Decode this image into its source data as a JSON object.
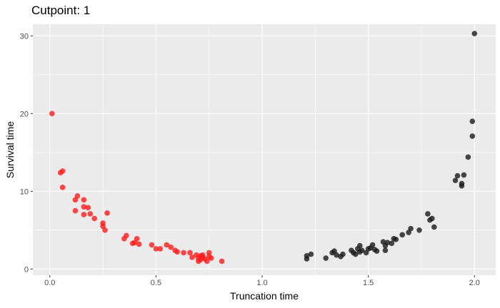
{
  "chart_data": {
    "type": "scatter",
    "title": "Cutpoint: 1",
    "xlabel": "Truncation time",
    "ylabel": "Survival time",
    "xlim": [
      -0.08,
      2.1
    ],
    "ylim": [
      -0.8,
      31.5
    ],
    "x_ticks": [
      0.0,
      0.5,
      1.0,
      1.5,
      2.0
    ],
    "x_tick_labels": [
      "0.0",
      "0.5",
      "1.0",
      "1.5",
      "2.0"
    ],
    "y_ticks": [
      0,
      10,
      20,
      30
    ],
    "y_tick_labels": [
      "0",
      "10",
      "20",
      "30"
    ],
    "grid": true,
    "legend": "none",
    "colors": {
      "panel": "#ebebeb",
      "grid": "#ffffff",
      "group_1": "#ff1a1a",
      "group_2": "#1a1a1a"
    },
    "series": [
      {
        "color": "#ff1a1a",
        "points": [
          [
            0.01,
            20.0
          ],
          [
            0.05,
            12.4
          ],
          [
            0.06,
            12.6
          ],
          [
            0.06,
            10.5
          ],
          [
            0.12,
            8.9
          ],
          [
            0.13,
            9.4
          ],
          [
            0.12,
            7.5
          ],
          [
            0.16,
            8.9
          ],
          [
            0.16,
            8.0
          ],
          [
            0.18,
            7.9
          ],
          [
            0.16,
            7.0
          ],
          [
            0.19,
            7.1
          ],
          [
            0.21,
            6.5
          ],
          [
            0.25,
            5.9
          ],
          [
            0.25,
            5.5
          ],
          [
            0.26,
            5.0
          ],
          [
            0.27,
            7.2
          ],
          [
            0.35,
            3.9
          ],
          [
            0.36,
            4.3
          ],
          [
            0.39,
            3.3
          ],
          [
            0.4,
            3.4
          ],
          [
            0.41,
            3.9
          ],
          [
            0.42,
            3.2
          ],
          [
            0.48,
            3.1
          ],
          [
            0.5,
            2.6
          ],
          [
            0.52,
            2.6
          ],
          [
            0.55,
            3.1
          ],
          [
            0.57,
            2.8
          ],
          [
            0.59,
            2.4
          ],
          [
            0.6,
            2.2
          ],
          [
            0.63,
            2.1
          ],
          [
            0.66,
            2.1
          ],
          [
            0.67,
            1.5
          ],
          [
            0.69,
            1.8
          ],
          [
            0.7,
            1.0
          ],
          [
            0.7,
            1.4
          ],
          [
            0.71,
            1.7
          ],
          [
            0.71,
            1.2
          ],
          [
            0.72,
            1.5
          ],
          [
            0.72,
            1.8
          ],
          [
            0.73,
            1.3
          ],
          [
            0.74,
            1.0
          ],
          [
            0.75,
            2.1
          ],
          [
            0.75,
            1.6
          ],
          [
            0.76,
            1.4
          ],
          [
            0.81,
            1.0
          ]
        ]
      },
      {
        "color": "#1a1a1a",
        "points": [
          [
            1.21,
            1.7
          ],
          [
            1.21,
            1.3
          ],
          [
            1.23,
            1.9
          ],
          [
            1.3,
            1.4
          ],
          [
            1.33,
            2.1
          ],
          [
            1.34,
            2.3
          ],
          [
            1.35,
            1.8
          ],
          [
            1.37,
            1.6
          ],
          [
            1.38,
            1.9
          ],
          [
            1.42,
            2.4
          ],
          [
            1.43,
            2.1
          ],
          [
            1.44,
            1.9
          ],
          [
            1.45,
            2.6
          ],
          [
            1.46,
            2.2
          ],
          [
            1.46,
            3.0
          ],
          [
            1.47,
            2.4
          ],
          [
            1.49,
            2.1
          ],
          [
            1.5,
            2.6
          ],
          [
            1.51,
            2.7
          ],
          [
            1.52,
            3.1
          ],
          [
            1.53,
            2.5
          ],
          [
            1.54,
            2.3
          ],
          [
            1.57,
            3.5
          ],
          [
            1.58,
            3.0
          ],
          [
            1.58,
            2.4
          ],
          [
            1.59,
            3.4
          ],
          [
            1.61,
            3.3
          ],
          [
            1.62,
            3.9
          ],
          [
            1.63,
            3.8
          ],
          [
            1.66,
            4.4
          ],
          [
            1.69,
            4.7
          ],
          [
            1.7,
            5.2
          ],
          [
            1.74,
            5.0
          ],
          [
            1.78,
            7.1
          ],
          [
            1.79,
            6.3
          ],
          [
            1.8,
            6.5
          ],
          [
            1.81,
            5.4
          ],
          [
            1.91,
            11.4
          ],
          [
            1.92,
            12.0
          ],
          [
            1.94,
            10.7
          ],
          [
            1.94,
            11.0
          ],
          [
            1.95,
            12.1
          ],
          [
            1.97,
            14.4
          ],
          [
            1.99,
            17.1
          ],
          [
            1.99,
            19.0
          ],
          [
            2.0,
            30.3
          ]
        ]
      }
    ]
  }
}
